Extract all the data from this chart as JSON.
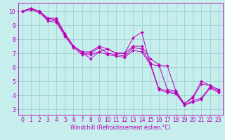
{
  "xlabel": "Windchill (Refroidissement éolien,°C)",
  "bg_color": "#c5eeed",
  "line_color": "#bb00bb",
  "grid_color": "#99cccc",
  "xlim": [
    -0.5,
    23.5
  ],
  "ylim": [
    2.6,
    10.6
  ],
  "xticks": [
    0,
    1,
    2,
    3,
    4,
    5,
    6,
    7,
    8,
    9,
    10,
    11,
    12,
    13,
    14,
    15,
    16,
    17,
    18,
    19,
    20,
    21,
    22,
    23
  ],
  "yticks": [
    3,
    4,
    5,
    6,
    7,
    8,
    9,
    10
  ],
  "series": [
    [
      10.0,
      10.2,
      10.0,
      9.5,
      9.5,
      8.4,
      7.5,
      7.1,
      6.6,
      7.1,
      7.3,
      7.0,
      7.0,
      8.1,
      8.5,
      6.2,
      6.1,
      6.1,
      4.3,
      3.4,
      3.8,
      4.8,
      4.7,
      4.4
    ],
    [
      10.0,
      10.2,
      10.0,
      9.5,
      9.4,
      8.4,
      7.5,
      7.1,
      7.1,
      7.5,
      7.3,
      7.0,
      7.0,
      7.5,
      7.5,
      6.6,
      6.2,
      4.4,
      4.3,
      3.4,
      3.9,
      5.0,
      4.7,
      4.4
    ],
    [
      10.0,
      10.2,
      10.0,
      9.4,
      9.3,
      8.3,
      7.5,
      7.0,
      7.0,
      7.4,
      7.0,
      6.9,
      6.8,
      7.4,
      7.3,
      6.3,
      4.5,
      4.3,
      4.2,
      3.3,
      3.6,
      3.8,
      4.6,
      4.3
    ],
    [
      10.0,
      10.1,
      9.9,
      9.3,
      9.2,
      8.2,
      7.4,
      6.9,
      6.9,
      7.1,
      6.9,
      6.8,
      6.7,
      7.2,
      7.1,
      6.2,
      4.4,
      4.2,
      4.1,
      3.3,
      3.5,
      3.7,
      4.5,
      4.2
    ]
  ],
  "tick_fontsize": 5.5,
  "xlabel_fontsize": 5.5,
  "marker_size": 2.0,
  "linewidth": 0.7
}
